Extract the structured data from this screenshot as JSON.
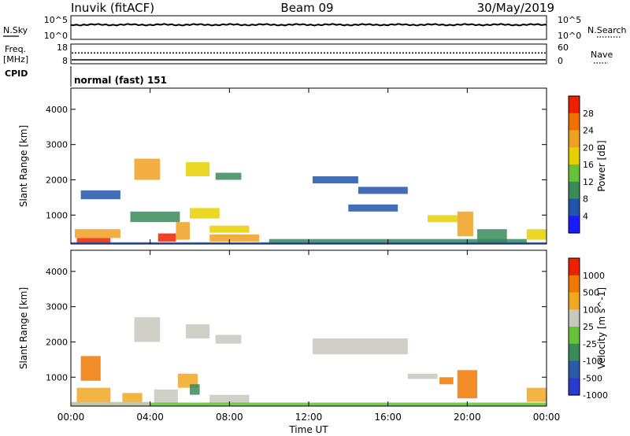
{
  "header": {
    "station": "Inuvik (fitACF)",
    "beam": "Beam 09",
    "date": "30/May/2019"
  },
  "chart_data": [
    {
      "type": "line",
      "panel": "noise",
      "left_label": "N.Sky",
      "right_label": "N.Search",
      "left_ticks": [
        "10^5",
        "10^0"
      ],
      "right_ticks": [
        "10^5",
        "10^0"
      ],
      "legend_marker_left": "solid",
      "legend_marker_right": "dotted",
      "sky_level_fraction": 0.62
    },
    {
      "type": "line",
      "panel": "frequency",
      "left_label_top": "Freq.",
      "left_label_bottom": "[MHz]",
      "right_label": "Nave",
      "left_ticks": [
        "18",
        "8"
      ],
      "right_ticks": [
        "60",
        "0"
      ],
      "freq_mhz": 10,
      "nave": 33
    },
    {
      "type": "table",
      "panel": "cpid",
      "label": "CPID",
      "text": "normal (fast) 151"
    },
    {
      "type": "heatmap",
      "panel": "power",
      "ylabel": "Slant Range [km]",
      "yticks": [
        1000,
        2000,
        3000,
        4000
      ],
      "ylim": [
        180,
        4600
      ],
      "colorbar_label": "Power [dB]",
      "colorbar_ticks": [
        "4",
        "8",
        "12",
        "16",
        "20",
        "24",
        "28"
      ],
      "colors": [
        "#1a1aff",
        "#2255aa",
        "#3a8a5a",
        "#66c23a",
        "#e8d000",
        "#f0a020",
        "#f07000",
        "#ee2000"
      ],
      "patches": [
        {
          "t0": 0.3,
          "t1": 2.0,
          "r0": 200,
          "r1": 350,
          "c": 7
        },
        {
          "t0": 0.2,
          "t1": 2.5,
          "r0": 350,
          "r1": 600,
          "c": 5
        },
        {
          "t0": 4.4,
          "t1": 5.3,
          "r0": 250,
          "r1": 480,
          "c": 7
        },
        {
          "t0": 5.3,
          "t1": 6.0,
          "r0": 300,
          "r1": 800,
          "c": 5
        },
        {
          "t0": 7.0,
          "t1": 9.5,
          "r0": 250,
          "r1": 450,
          "c": 5
        },
        {
          "t0": 7.0,
          "t1": 9.0,
          "r0": 500,
          "r1": 700,
          "c": 4
        },
        {
          "t0": 3.0,
          "t1": 5.5,
          "r0": 800,
          "r1": 1100,
          "c": 2
        },
        {
          "t0": 6.0,
          "t1": 7.5,
          "r0": 900,
          "r1": 1200,
          "c": 4
        },
        {
          "t0": 3.2,
          "t1": 4.5,
          "r0": 2000,
          "r1": 2600,
          "c": 5
        },
        {
          "t0": 5.8,
          "t1": 7.0,
          "r0": 2100,
          "r1": 2500,
          "c": 4
        },
        {
          "t0": 7.3,
          "t1": 8.6,
          "r0": 2000,
          "r1": 2200,
          "c": 2
        },
        {
          "t0": 12.2,
          "t1": 14.5,
          "r0": 1900,
          "r1": 2100,
          "c": 1
        },
        {
          "t0": 14.5,
          "t1": 17.0,
          "r0": 1600,
          "r1": 1800,
          "c": 1
        },
        {
          "t0": 0.5,
          "t1": 2.5,
          "r0": 1450,
          "r1": 1700,
          "c": 1
        },
        {
          "t0": 18.0,
          "t1": 19.5,
          "r0": 800,
          "r1": 1000,
          "c": 4
        },
        {
          "t0": 19.5,
          "t1": 20.3,
          "r0": 400,
          "r1": 1100,
          "c": 5
        },
        {
          "t0": 20.5,
          "t1": 22.0,
          "r0": 200,
          "r1": 600,
          "c": 2
        },
        {
          "t0": 23.0,
          "t1": 24.0,
          "r0": 300,
          "r1": 600,
          "c": 4
        },
        {
          "t0": 10.0,
          "t1": 23.0,
          "r0": 200,
          "r1": 320,
          "c": 2
        },
        {
          "t0": 0.0,
          "t1": 24.0,
          "r0": 180,
          "r1": 230,
          "c": 1
        },
        {
          "t0": 14.0,
          "t1": 16.5,
          "r0": 1100,
          "r1": 1300,
          "c": 1
        }
      ]
    },
    {
      "type": "heatmap",
      "panel": "velocity",
      "ylabel": "Slant Range [km]",
      "yticks": [
        1000,
        2000,
        3000,
        4000
      ],
      "ylim": [
        180,
        4600
      ],
      "colorbar_label": "Velocity [m s^-1]",
      "colorbar_ticks": [
        "1000",
        "500",
        "100",
        "25",
        "-25",
        "-100",
        "-500",
        "-1000"
      ],
      "colors": [
        "#2a3ad0",
        "#2a5aa8",
        "#3a8a5a",
        "#66c23a",
        "#c8c8c0",
        "#f0a820",
        "#f07800",
        "#ee2000"
      ],
      "patches": [
        {
          "t0": 0.3,
          "t1": 2.0,
          "r0": 200,
          "r1": 700,
          "c": 5
        },
        {
          "t0": 0.5,
          "t1": 1.5,
          "r0": 900,
          "r1": 1600,
          "c": 6
        },
        {
          "t0": 2.6,
          "t1": 3.6,
          "r0": 200,
          "r1": 550,
          "c": 5
        },
        {
          "t0": 4.2,
          "t1": 5.4,
          "r0": 250,
          "r1": 650,
          "c": 4
        },
        {
          "t0": 5.4,
          "t1": 6.4,
          "r0": 700,
          "r1": 1100,
          "c": 5
        },
        {
          "t0": 7.0,
          "t1": 9.0,
          "r0": 250,
          "r1": 500,
          "c": 4
        },
        {
          "t0": 3.2,
          "t1": 4.5,
          "r0": 2000,
          "r1": 2700,
          "c": 4
        },
        {
          "t0": 5.8,
          "t1": 7.0,
          "r0": 2100,
          "r1": 2500,
          "c": 4
        },
        {
          "t0": 7.3,
          "t1": 8.6,
          "r0": 1950,
          "r1": 2200,
          "c": 4
        },
        {
          "t0": 12.2,
          "t1": 17.0,
          "r0": 1650,
          "r1": 2100,
          "c": 4
        },
        {
          "t0": 17.0,
          "t1": 18.5,
          "r0": 950,
          "r1": 1100,
          "c": 4
        },
        {
          "t0": 19.5,
          "t1": 20.5,
          "r0": 400,
          "r1": 1200,
          "c": 6
        },
        {
          "t0": 18.6,
          "t1": 19.3,
          "r0": 800,
          "r1": 1000,
          "c": 6
        },
        {
          "t0": 23.0,
          "t1": 24.0,
          "r0": 300,
          "r1": 700,
          "c": 5
        },
        {
          "t0": 0.0,
          "t1": 24.0,
          "r0": 180,
          "r1": 280,
          "c": 3
        },
        {
          "t0": 0.0,
          "t1": 4.0,
          "r0": 180,
          "r1": 300,
          "c": 4
        },
        {
          "t0": 6.0,
          "t1": 6.5,
          "r0": 500,
          "r1": 800,
          "c": 2
        }
      ]
    }
  ],
  "xaxis": {
    "label": "Time UT",
    "ticks": [
      "00:00",
      "04:00",
      "08:00",
      "12:00",
      "16:00",
      "20:00",
      "00:00"
    ],
    "range_hours": [
      0,
      24
    ]
  }
}
